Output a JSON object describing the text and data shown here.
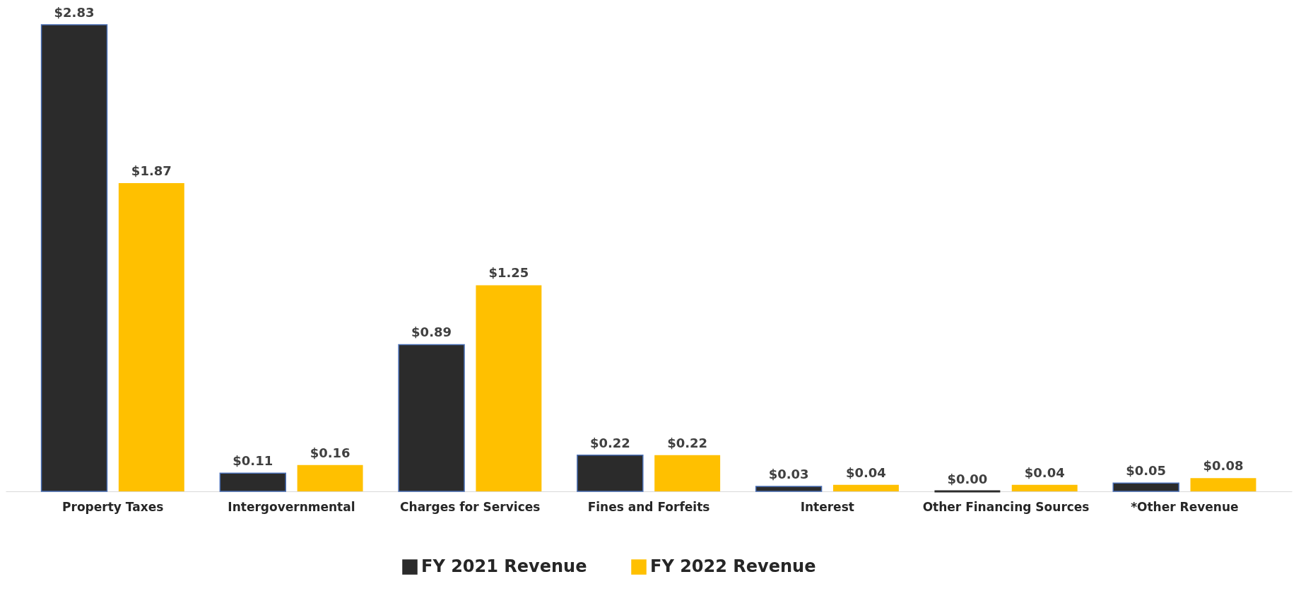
{
  "chart_data": {
    "type": "bar",
    "categories": [
      "Property Taxes",
      "Intergovernmental",
      "Charges for Services",
      "Fines and Forfeits",
      "Interest",
      "Other Financing Sources",
      "*Other Revenue"
    ],
    "series": [
      {
        "name": "FY 2021 Revenue",
        "color": "#2b2b2b",
        "values": [
          2.83,
          0.11,
          0.89,
          0.22,
          0.03,
          0,
          0.05
        ],
        "value_labels": [
          "$2.83",
          "$0.11",
          "$0.89",
          "$0.22",
          "$0.03",
          "$0.00",
          "$0.05"
        ]
      },
      {
        "name": "FY 2022  Revenue",
        "color": "#ffc000",
        "values": [
          1.87,
          0.16,
          1.25,
          0.22,
          0.04,
          0.04,
          0.08
        ],
        "value_labels": [
          "$1.87",
          "$0.16",
          "$1.25",
          "$0.22",
          "$0.04",
          "$0.04",
          "$0.08"
        ]
      }
    ],
    "legend": "bottom"
  }
}
